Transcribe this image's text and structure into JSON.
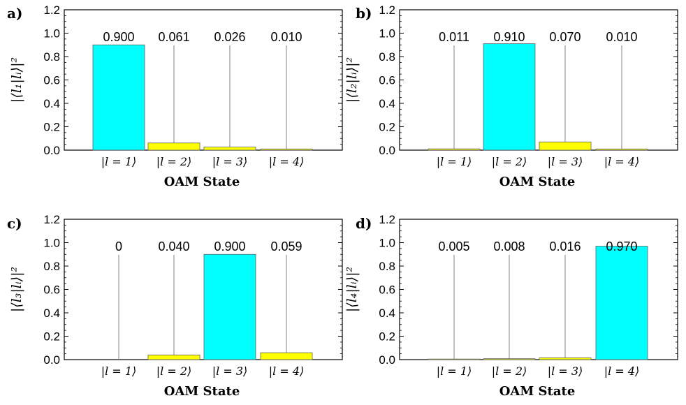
{
  "chart_data": [
    {
      "type": "bar",
      "panel_label": "a)",
      "ylabel": "|⟨l₁|lᵢ⟩|²",
      "xlabel": "OAM State",
      "categories": [
        "|l = 1⟩",
        "|l = 2⟩",
        "|l = 3⟩",
        "|l = 4⟩"
      ],
      "values": [
        0.9,
        0.061,
        0.026,
        0.01
      ],
      "value_labels": [
        "0.900",
        "0.061",
        "0.026",
        "0.010"
      ],
      "highlight_index": 0,
      "ylim": [
        0,
        1.2
      ],
      "yticks": [
        "0.0",
        "0.2",
        "0.4",
        "0.6",
        "0.8",
        "1.0",
        "1.2"
      ]
    },
    {
      "type": "bar",
      "panel_label": "b)",
      "ylabel": "|⟨l₂|lᵢ⟩|²",
      "xlabel": "OAM State",
      "categories": [
        "|l = 1⟩",
        "|l = 2⟩",
        "|l = 3⟩",
        "|l = 4⟩"
      ],
      "values": [
        0.011,
        0.91,
        0.07,
        0.01
      ],
      "value_labels": [
        "0.011",
        "0.910",
        "0.070",
        "0.010"
      ],
      "highlight_index": 1,
      "ylim": [
        0,
        1.2
      ],
      "yticks": [
        "0.0",
        "0.2",
        "0.4",
        "0.6",
        "0.8",
        "1.0",
        "1.2"
      ]
    },
    {
      "type": "bar",
      "panel_label": "c)",
      "ylabel": "|⟨l₃|lᵢ⟩|²",
      "xlabel": "OAM State",
      "categories": [
        "|l = 1⟩",
        "|l = 2⟩",
        "|l = 3⟩",
        "|l = 4⟩"
      ],
      "values": [
        0,
        0.04,
        0.9,
        0.059
      ],
      "value_labels": [
        "0",
        "0.040",
        "0.900",
        "0.059"
      ],
      "highlight_index": 2,
      "ylim": [
        0,
        1.2
      ],
      "yticks": [
        "0.0",
        "0.2",
        "0.4",
        "0.6",
        "0.8",
        "1.0",
        "1.2"
      ]
    },
    {
      "type": "bar",
      "panel_label": "d)",
      "ylabel": "|⟨l₄|lᵢ⟩|²",
      "xlabel": "OAM State",
      "categories": [
        "|l = 1⟩",
        "|l = 2⟩",
        "|l = 3⟩",
        "|l = 4⟩"
      ],
      "values": [
        0.005,
        0.008,
        0.016,
        0.97
      ],
      "value_labels": [
        "0.005",
        "0.008",
        "0.016",
        "0.970"
      ],
      "highlight_index": 3,
      "ylim": [
        0,
        1.2
      ],
      "yticks": [
        "0.0",
        "0.2",
        "0.4",
        "0.6",
        "0.8",
        "1.0",
        "1.2"
      ]
    }
  ],
  "colors": {
    "highlight": "#00ffff",
    "other": "#ffff00",
    "leader": "#808080",
    "frame": "#000000"
  }
}
